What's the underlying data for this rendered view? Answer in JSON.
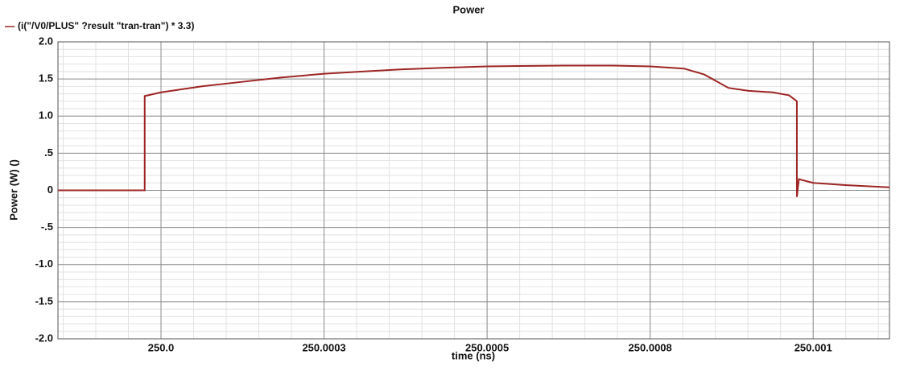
{
  "chart_data": {
    "type": "line",
    "title": "Power",
    "x_label": "time (ns)",
    "y_label": "Power (W) ()",
    "x": [
      249.999842,
      249.999975,
      249.999975,
      250.0,
      250.0000617,
      250.000123,
      250.000185,
      250.00025,
      250.000309,
      250.00037,
      250.000432,
      250.0005,
      250.000617,
      250.000691,
      250.00075,
      250.000802,
      250.000833,
      250.00087,
      250.000901,
      250.000938,
      250.000963,
      250.000975,
      250.000975,
      250.000978,
      250.001,
      250.001049,
      250.001117
    ],
    "series": [
      {
        "name": "(i(\"/V0/PLUS\" ?result \"tran-tran\") * 3.3)",
        "color": "#9e2424",
        "values": [
          0,
          0,
          1.27,
          1.32,
          1.4,
          1.46,
          1.52,
          1.57,
          1.6,
          1.63,
          1.65,
          1.67,
          1.68,
          1.68,
          1.67,
          1.64,
          1.56,
          1.38,
          1.34,
          1.32,
          1.28,
          1.2,
          -0.09,
          0.15,
          0.1,
          0.07,
          0.04
        ]
      }
    ],
    "xlim": [
      249.999842,
      250.001117
    ],
    "xticks": [
      {
        "value": 250,
        "label": "250.0"
      },
      {
        "value": 250.00025,
        "label": "250.0003"
      },
      250.0005,
      {
        "value": 250.00075,
        "label": "250.0008"
      },
      250.001
    ],
    "ylim": [
      -2,
      2
    ],
    "yticks": [
      {
        "value": 2,
        "label": "2.0"
      },
      {
        "value": 1.5,
        "label": "1.5"
      },
      {
        "value": 1,
        "label": "1.0"
      },
      {
        "value": 0.5,
        "label": ".5"
      },
      0,
      {
        "value": -0.5,
        "label": "-.5"
      },
      {
        "value": -1,
        "label": "-1.0"
      },
      {
        "value": -1.5,
        "label": "-1.5"
      },
      {
        "value": -2,
        "label": "-2.0"
      }
    ],
    "grid": true,
    "legend": "top-left"
  }
}
